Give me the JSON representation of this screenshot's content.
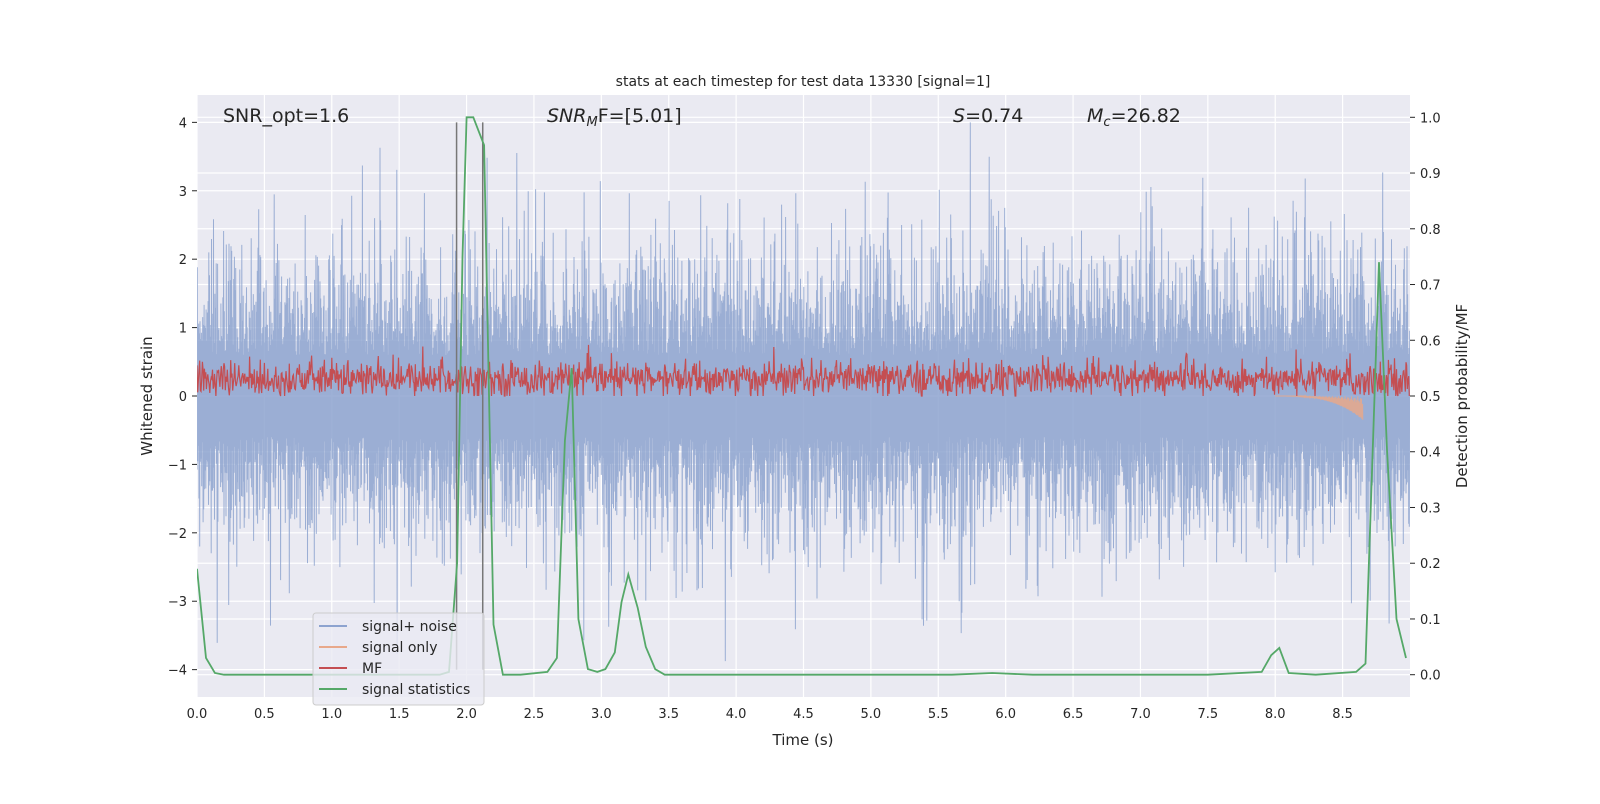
{
  "chart_data": {
    "type": "line",
    "title": "stats at each timestep for test data 13330 [signal=1]",
    "xlabel": "Time (s)",
    "ylabel": "Whitened strain",
    "ylabel_right": "Detection probability/MF",
    "xlim": [
      0,
      9
    ],
    "ylim": [
      -4.4,
      4.4
    ],
    "ylim_right": [
      -0.04,
      1.04
    ],
    "xticks": [
      "0.0",
      "0.5",
      "1.0",
      "1.5",
      "2.0",
      "2.5",
      "3.0",
      "3.5",
      "4.0",
      "4.5",
      "5.0",
      "5.5",
      "6.0",
      "6.5",
      "7.0",
      "7.5",
      "8.0",
      "8.5"
    ],
    "yticks": [
      "4",
      "3",
      "2",
      "1",
      "0",
      "−1",
      "−2",
      "−3",
      "−4"
    ],
    "yticks_right": [
      "1.0",
      "0.9",
      "0.8",
      "0.7",
      "0.6",
      "0.5",
      "0.4",
      "0.3",
      "0.2",
      "0.1",
      "0.0"
    ],
    "grid": true,
    "legend_placement": "lower-left",
    "annotations": {
      "snr_opt": "SNR_opt=1.6",
      "snr_mf_base": "SNR",
      "snr_mf_sub": "M",
      "snr_mf_rest": "F=[5.01]",
      "s_var": "S",
      "s_rest": "=0.74",
      "mc_var": "M",
      "mc_sub": "c",
      "mc_rest": "=26.82"
    },
    "vertical_markers": [
      1.926,
      2.12
    ],
    "series": [
      {
        "name": "signal+ noise",
        "color": "#8da3cf",
        "axis": "left",
        "description_range": [
          -4.0,
          4.0
        ]
      },
      {
        "name": "signal only",
        "color": "#e8a88a",
        "axis": "left",
        "active_interval": [
          8.0,
          8.65
        ],
        "min_value": -0.35
      },
      {
        "name": "MF",
        "color": "#c44e52",
        "axis": "left",
        "typical_range": [
          0.0,
          0.6
        ],
        "max_value": 1.0
      },
      {
        "name": "signal statistics",
        "color": "#55a868",
        "axis": "right",
        "x": [
          0.0,
          0.067,
          0.133,
          0.2,
          0.5,
          1.0,
          1.5,
          1.8,
          1.87,
          1.93,
          1.97,
          2.0,
          2.05,
          2.13,
          2.2,
          2.27,
          2.4,
          2.6,
          2.67,
          2.73,
          2.78,
          2.83,
          2.9,
          2.97,
          3.03,
          3.1,
          3.15,
          3.2,
          3.27,
          3.33,
          3.4,
          3.47,
          4.0,
          5.0,
          5.6,
          5.9,
          6.2,
          7.0,
          7.5,
          7.9,
          7.97,
          8.03,
          8.1,
          8.3,
          8.6,
          8.67,
          8.73,
          8.77,
          8.83,
          8.9,
          8.97
        ],
        "y": [
          0.19,
          0.03,
          0.003,
          0.0,
          0.0,
          0.0,
          0.0,
          0.0,
          0.005,
          0.2,
          0.75,
          1.0,
          1.0,
          0.95,
          0.09,
          0.0,
          0.0,
          0.005,
          0.03,
          0.42,
          0.55,
          0.1,
          0.01,
          0.005,
          0.01,
          0.04,
          0.13,
          0.18,
          0.12,
          0.05,
          0.01,
          0.0,
          0.0,
          0.0,
          0.0,
          0.003,
          0.0,
          0.0,
          0.0,
          0.005,
          0.035,
          0.048,
          0.003,
          0.0,
          0.005,
          0.02,
          0.45,
          0.74,
          0.4,
          0.1,
          0.03
        ]
      }
    ]
  }
}
